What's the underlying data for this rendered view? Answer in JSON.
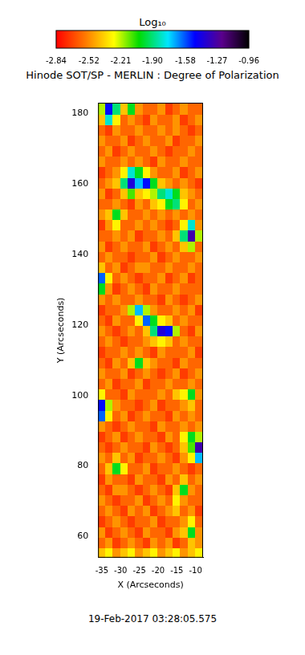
{
  "chart_data": {
    "type": "heatmap",
    "title": "Hinode SOT/SP - MERLIN : Degree of Polarization",
    "x_label": "X (Arcseconds)",
    "y_label": "Y (Arcseconds)",
    "annotation": "19-Feb-2017 03:28:05.575",
    "xlim": [
      -36,
      -8
    ],
    "xticks": [
      -35,
      -30,
      -25,
      -20,
      -15,
      -10
    ],
    "ylim": [
      54,
      183
    ],
    "yticks": [
      60,
      80,
      100,
      120,
      140,
      160,
      180
    ],
    "grid": false,
    "x": [
      -35,
      -33,
      -31,
      -29,
      -27,
      -25,
      -23,
      -21,
      -19,
      -17,
      -15,
      -13,
      -11,
      -9
    ],
    "y": [
      55.5,
      58.5,
      61.5,
      64.5,
      67.5,
      70.5,
      73.5,
      76.5,
      79.5,
      82.5,
      85.5,
      88.5,
      91.5,
      94.5,
      97.5,
      100.5,
      103.5,
      106.5,
      109.5,
      112.5,
      115.5,
      118.5,
      121.5,
      124.5,
      127.5,
      130.5,
      133.5,
      136.5,
      139.5,
      142.5,
      145.5,
      148.5,
      151.5,
      154.5,
      157.5,
      160.5,
      163.5,
      166.5,
      169.5,
      172.5,
      175.5,
      178.5,
      181.5
    ],
    "cells": [
      [
        -2.4,
        -2.3,
        -2.5,
        -2.4,
        -2.3,
        -2.5,
        -2.4,
        -2.3,
        -2.5,
        -2.4,
        -2.3,
        -2.5,
        -2.4,
        -2.3
      ],
      [
        -2.6,
        -2.5,
        -2.7,
        -2.6,
        -2.5,
        -2.6,
        -2.7,
        -2.5,
        -2.6,
        -2.5,
        -2.7,
        -2.6,
        -2.4,
        -2.5
      ],
      [
        -2.5,
        -2.7,
        -2.6,
        -2.5,
        -2.6,
        -2.7,
        -2.5,
        -2.6,
        -2.6,
        -2.7,
        -2.5,
        -2.4,
        -2.0,
        -2.5
      ],
      [
        -2.7,
        -2.6,
        -2.5,
        -2.6,
        -2.7,
        -2.6,
        -2.6,
        -2.5,
        -2.7,
        -2.6,
        -2.6,
        -2.5,
        -2.3,
        -2.6
      ],
      [
        -2.6,
        -2.5,
        -2.6,
        -2.7,
        -2.5,
        -2.6,
        -2.5,
        -2.7,
        -2.6,
        -2.5,
        -2.4,
        -2.6,
        -2.5,
        -2.7
      ],
      [
        -2.5,
        -2.6,
        -2.7,
        -2.6,
        -2.6,
        -2.5,
        -2.7,
        -2.6,
        -2.5,
        -2.6,
        -2.3,
        -2.5,
        -2.6,
        -2.6
      ],
      [
        -2.6,
        -2.7,
        -2.5,
        -2.5,
        -2.6,
        -2.7,
        -2.6,
        -2.5,
        -2.6,
        -2.7,
        -2.4,
        -2.0,
        -2.5,
        -2.6
      ],
      [
        -2.7,
        -2.5,
        -2.6,
        -2.6,
        -2.7,
        -2.5,
        -2.6,
        -2.6,
        -2.7,
        -2.5,
        -2.6,
        -2.4,
        -2.6,
        -2.5
      ],
      [
        -2.6,
        -2.4,
        -2.0,
        -2.3,
        -2.6,
        -2.6,
        -2.5,
        -2.7,
        -2.6,
        -2.6,
        -2.5,
        -2.6,
        -2.7,
        -2.6
      ],
      [
        -2.5,
        -2.6,
        -2.4,
        -2.6,
        -2.5,
        -2.7,
        -2.6,
        -2.6,
        -2.5,
        -2.6,
        -2.7,
        -2.5,
        -2.3,
        -1.7
      ],
      [
        -2.6,
        -2.7,
        -2.6,
        -2.5,
        -2.6,
        -2.6,
        -2.7,
        -2.5,
        -2.6,
        -2.7,
        -2.6,
        -2.4,
        -2.1,
        -1.3
      ],
      [
        -2.7,
        -2.6,
        -2.5,
        -2.7,
        -2.6,
        -2.5,
        -2.6,
        -2.6,
        -2.7,
        -2.5,
        -2.6,
        -2.3,
        -2.0,
        -2.2
      ],
      [
        -2.5,
        -2.6,
        -2.7,
        -2.6,
        -2.5,
        -2.6,
        -2.6,
        -2.7,
        -2.5,
        -2.6,
        -2.6,
        -2.5,
        -2.6,
        -2.5
      ],
      [
        -1.6,
        -2.3,
        -2.6,
        -2.5,
        -2.7,
        -2.6,
        -2.5,
        -2.6,
        -2.6,
        -2.7,
        -2.5,
        -2.6,
        -2.5,
        -2.6
      ],
      [
        -1.5,
        -2.2,
        -2.5,
        -2.6,
        -2.6,
        -2.7,
        -2.6,
        -2.5,
        -2.7,
        -2.6,
        -2.6,
        -2.5,
        -2.4,
        -2.6
      ],
      [
        -2.3,
        -2.6,
        -2.6,
        -2.7,
        -2.5,
        -2.6,
        -2.6,
        -2.6,
        -2.5,
        -2.6,
        -2.4,
        -2.3,
        -2.0,
        -2.5
      ],
      [
        -2.6,
        -2.5,
        -2.7,
        -2.6,
        -2.6,
        -2.5,
        -2.7,
        -2.6,
        -2.6,
        -2.5,
        -2.6,
        -2.6,
        -2.5,
        -2.6
      ],
      [
        -2.5,
        -2.6,
        -2.6,
        -2.5,
        -2.7,
        -2.6,
        -2.5,
        -2.6,
        -2.7,
        -2.6,
        -2.5,
        -2.7,
        -2.6,
        -2.5
      ],
      [
        -2.6,
        -2.7,
        -2.5,
        -2.6,
        -2.4,
        -2.0,
        -2.4,
        -2.5,
        -2.6,
        -2.6,
        -2.7,
        -2.5,
        -2.6,
        -2.6
      ],
      [
        -2.7,
        -2.6,
        -2.6,
        -2.5,
        -2.6,
        -2.5,
        -2.6,
        -2.7,
        -2.5,
        -2.6,
        -2.6,
        -2.6,
        -2.5,
        -2.7
      ],
      [
        -2.6,
        -2.5,
        -2.6,
        -2.7,
        -2.6,
        -2.6,
        -2.5,
        -2.4,
        -2.3,
        -2.4,
        -2.6,
        -2.5,
        -2.6,
        -2.6
      ],
      [
        -2.5,
        -2.6,
        -2.7,
        -2.6,
        -2.5,
        -2.6,
        -2.4,
        -1.9,
        -1.4,
        -1.5,
        -2.2,
        -2.6,
        -2.7,
        -2.5
      ],
      [
        -2.6,
        -2.7,
        -2.5,
        -2.6,
        -2.6,
        -2.3,
        -1.6,
        -2.0,
        -2.3,
        -2.4,
        -2.6,
        -2.5,
        -2.6,
        -2.6
      ],
      [
        -2.7,
        -2.6,
        -2.6,
        -2.5,
        -2.2,
        -1.7,
        -2.2,
        -2.5,
        -2.6,
        -2.6,
        -2.5,
        -2.6,
        -2.5,
        -2.7
      ],
      [
        -2.5,
        -2.6,
        -2.5,
        -2.6,
        -2.6,
        -2.5,
        -2.6,
        -2.6,
        -2.7,
        -2.5,
        -2.6,
        -2.7,
        -2.6,
        -2.5
      ],
      [
        -2.0,
        -2.5,
        -2.7,
        -2.6,
        -2.5,
        -2.6,
        -2.7,
        -2.5,
        -2.6,
        -2.6,
        -2.5,
        -2.6,
        -2.6,
        -2.6
      ],
      [
        -1.6,
        -2.3,
        -2.6,
        -2.5,
        -2.6,
        -2.7,
        -2.6,
        -2.6,
        -2.5,
        -2.7,
        -2.6,
        -2.5,
        -2.7,
        -2.6
      ],
      [
        -2.4,
        -2.6,
        -2.5,
        -2.7,
        -2.6,
        -2.5,
        -2.5,
        -2.6,
        -2.6,
        -2.5,
        -2.6,
        -2.6,
        -2.5,
        -2.6
      ],
      [
        -2.6,
        -2.5,
        -2.6,
        -2.6,
        -2.7,
        -2.6,
        -2.6,
        -2.5,
        -2.7,
        -2.6,
        -2.5,
        -2.6,
        -2.6,
        -2.5
      ],
      [
        -2.5,
        -2.7,
        -2.6,
        -2.5,
        -2.6,
        -2.6,
        -2.5,
        -2.7,
        -2.6,
        -2.5,
        -2.6,
        -2.4,
        -2.2,
        -2.6
      ],
      [
        -2.6,
        -2.6,
        -2.5,
        -2.6,
        -2.5,
        -2.7,
        -2.6,
        -2.6,
        -2.5,
        -2.6,
        -2.4,
        -1.9,
        -1.3,
        -2.2
      ],
      [
        -2.7,
        -2.5,
        -2.3,
        -2.6,
        -2.6,
        -2.5,
        -2.6,
        -2.5,
        -2.6,
        -2.7,
        -2.6,
        -2.3,
        -1.8,
        -2.5
      ],
      [
        -2.5,
        -2.4,
        -2.0,
        -2.4,
        -2.6,
        -2.6,
        -2.5,
        -2.6,
        -2.5,
        -2.6,
        -2.5,
        -2.6,
        -2.5,
        -2.6
      ],
      [
        -2.6,
        -2.6,
        -2.5,
        -2.6,
        -2.7,
        -2.5,
        -2.6,
        -2.4,
        -2.3,
        -2.0,
        -1.9,
        -2.3,
        -2.6,
        -2.5
      ],
      [
        -2.5,
        -2.7,
        -2.6,
        -2.4,
        -2.1,
        -2.4,
        -2.3,
        -2.2,
        -1.9,
        -1.8,
        -2.0,
        -2.4,
        -2.5,
        -2.6
      ],
      [
        -2.6,
        -2.5,
        -2.4,
        -1.9,
        -1.4,
        -1.7,
        -1.5,
        -2.0,
        -2.4,
        -2.5,
        -2.6,
        -2.5,
        -2.6,
        -2.7
      ],
      [
        -2.7,
        -2.6,
        -2.5,
        -2.3,
        -1.8,
        -2.0,
        -2.3,
        -2.5,
        -2.6,
        -2.6,
        -2.5,
        -2.7,
        -2.6,
        -2.5
      ],
      [
        -2.5,
        -2.6,
        -2.6,
        -2.5,
        -2.6,
        -2.5,
        -2.6,
        -2.7,
        -2.5,
        -2.6,
        -2.6,
        -2.5,
        -2.6,
        -2.6
      ],
      [
        -2.6,
        -2.5,
        -2.7,
        -2.6,
        -2.5,
        -2.6,
        -2.6,
        -2.5,
        -2.6,
        -2.7,
        -2.6,
        -2.6,
        -2.5,
        -2.6
      ],
      [
        -2.5,
        -2.6,
        -2.6,
        -2.5,
        -2.7,
        -2.6,
        -2.5,
        -2.6,
        -2.6,
        -2.5,
        -2.7,
        -2.6,
        -2.6,
        -2.5
      ],
      [
        -2.6,
        -2.7,
        -2.5,
        -2.6,
        -2.6,
        -2.5,
        -2.6,
        -2.6,
        -2.5,
        -2.6,
        -2.5,
        -2.6,
        -2.7,
        -2.6
      ],
      [
        -2.4,
        -1.8,
        -2.3,
        -2.6,
        -2.5,
        -2.6,
        -2.7,
        -2.5,
        -2.6,
        -2.6,
        -2.5,
        -2.7,
        -2.6,
        -2.5
      ],
      [
        -2.2,
        -1.5,
        -1.9,
        -2.4,
        -2.0,
        -2.5,
        -2.6,
        -2.6,
        -2.5,
        -2.7,
        -2.6,
        -2.5,
        -2.6,
        -2.6
      ]
    ],
    "colorbar": {
      "label": "Log₁₀",
      "range": [
        -2.84,
        -0.96
      ],
      "ticks": [
        -2.84,
        -2.52,
        -2.21,
        {
          "value": -1.9,
          "label": "-1.90"
        },
        -1.58,
        -1.27,
        -0.96
      ]
    }
  }
}
